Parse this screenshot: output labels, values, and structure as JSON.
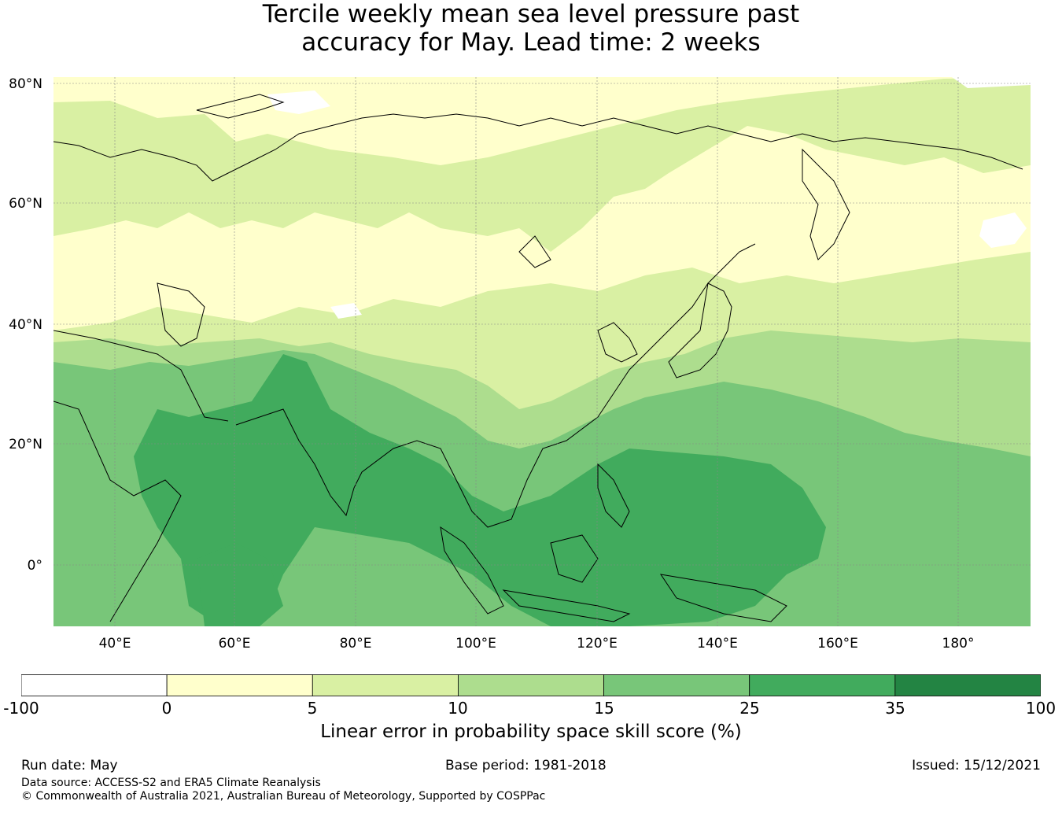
{
  "title_line1": "Tercile weekly mean sea level pressure past",
  "title_line2": "accuracy for May. Lead time: 2 weeks",
  "map": {
    "lat_labels": [
      "80°N",
      "60°N",
      "40°N",
      "20°N",
      "0°"
    ],
    "lon_labels": [
      "40°E",
      "60°E",
      "80°E",
      "100°E",
      "120°E",
      "140°E",
      "160°E",
      "180°"
    ]
  },
  "colorbar": {
    "bins": [
      {
        "from": -100,
        "to": 0,
        "color": "#ffffff"
      },
      {
        "from": 0,
        "to": 5,
        "color": "#ffffcc"
      },
      {
        "from": 5,
        "to": 10,
        "color": "#d9f0a3"
      },
      {
        "from": 10,
        "to": 15,
        "color": "#addd8e"
      },
      {
        "from": 15,
        "to": 25,
        "color": "#78c679"
      },
      {
        "from": 25,
        "to": 35,
        "color": "#41ab5d"
      },
      {
        "from": 35,
        "to": 100,
        "color": "#238443"
      }
    ],
    "tick_labels": [
      "-100",
      "0",
      "5",
      "10",
      "15",
      "25",
      "35",
      "100"
    ],
    "label": "Linear error in probability space skill score (%)"
  },
  "footer": {
    "run_date": "Run date: May",
    "base_period": "Base period: 1981-2018",
    "issued": "Issued: 15/12/2021",
    "data_source": "Data source: ACCESS-S2 and ERA5 Climate Reanalysis",
    "copyright": "© Commonwealth of Australia 2021, Australian Bureau of Meteorology, Supported by COSPPac"
  }
}
